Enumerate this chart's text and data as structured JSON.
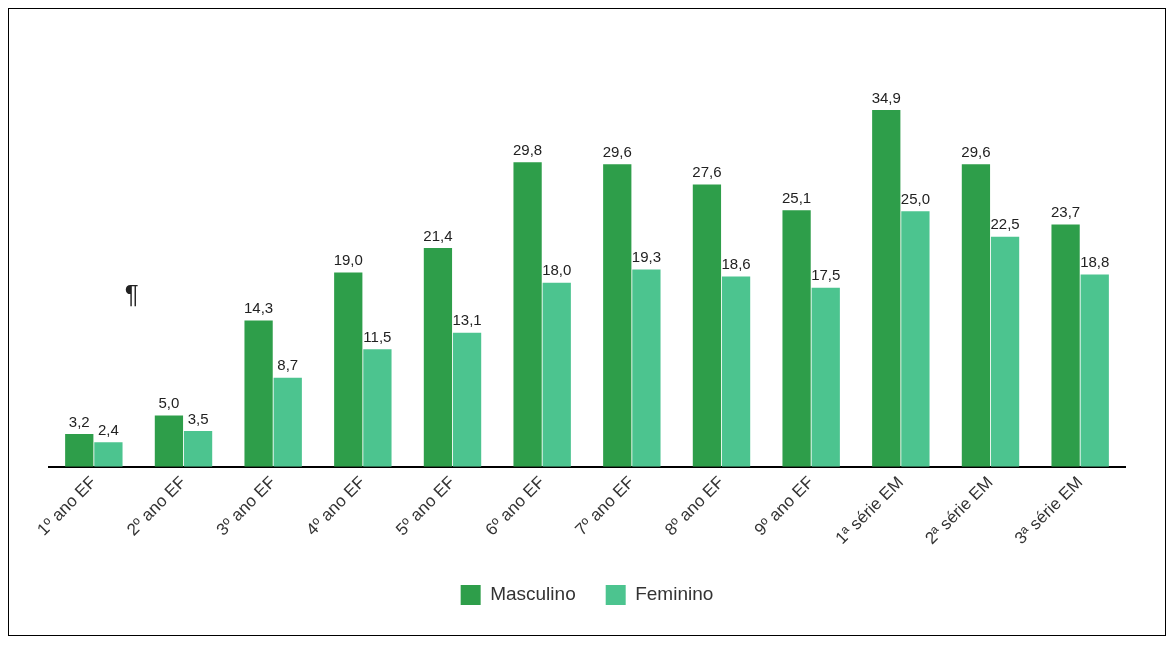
{
  "chart_data": {
    "type": "bar",
    "categories": [
      "1º ano EF",
      "2º ano EF",
      "3º ano EF",
      "4º ano EF",
      "5º ano EF",
      "6º ano EF",
      "7º ano EF",
      "8º ano EF",
      "9º ano EF",
      "1ª série EM",
      "2ª série EM",
      "3ª série EM"
    ],
    "series": [
      {
        "name": "Masculino",
        "color": "#2e9e4a",
        "values": [
          3.2,
          5.0,
          14.3,
          19.0,
          21.4,
          29.8,
          29.6,
          27.6,
          25.1,
          34.9,
          29.6,
          23.7
        ],
        "value_labels": [
          "3,2",
          "5,0",
          "14,3",
          "19,0",
          "21,4",
          "29,8",
          "29,6",
          "27,6",
          "25,1",
          "34,9",
          "29,6",
          "23,7"
        ]
      },
      {
        "name": "Feminino",
        "color": "#4cc48f",
        "values": [
          2.4,
          3.5,
          8.7,
          11.5,
          13.1,
          18.0,
          19.3,
          18.6,
          17.5,
          25.0,
          22.5,
          18.8
        ],
        "value_labels": [
          "2,4",
          "3,5",
          "8,7",
          "11,5",
          "13,1",
          "18,0",
          "19,3",
          "18,6",
          "17,5",
          "25,0",
          "22,5",
          "18,8"
        ]
      }
    ],
    "annotations": [
      "¶"
    ],
    "grid": false,
    "legend": "bottom"
  }
}
